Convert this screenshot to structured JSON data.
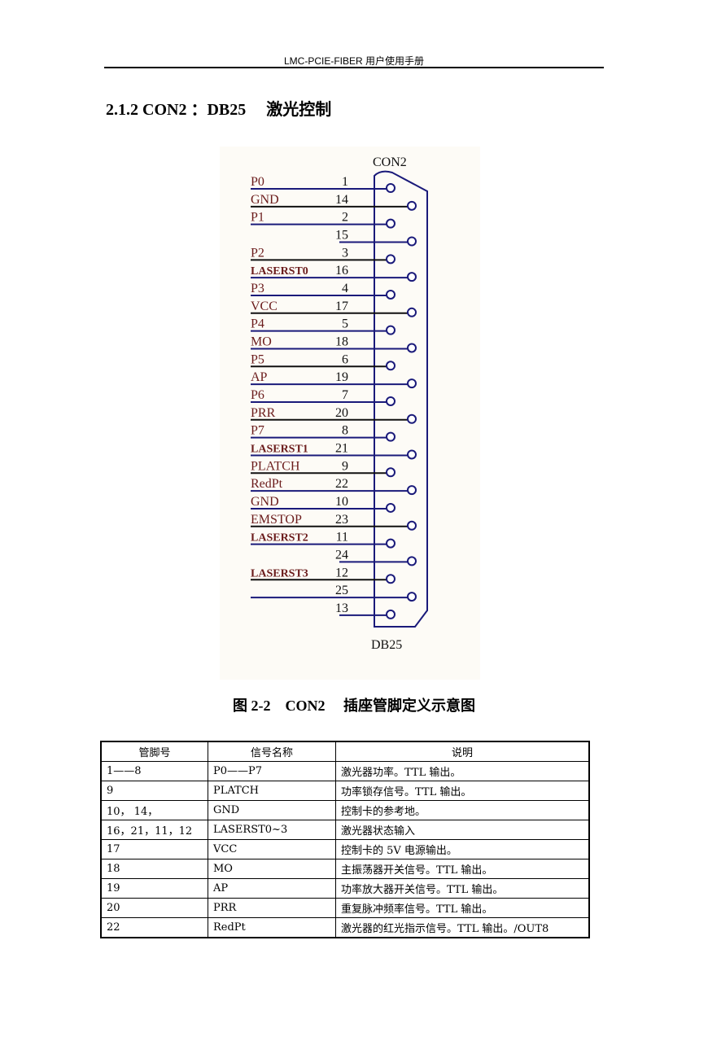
{
  "header": {
    "title": "LMC-PCIE-FIBER 用户使用手册"
  },
  "section": {
    "title": "2.1.2 CON2 ：DB25　 激光控制"
  },
  "diagram": {
    "connector_name": "CON2",
    "connector_type": "DB25",
    "label_color": "#6b1c1c",
    "wire_color": "#1a1a7a",
    "pins": [
      {
        "pin": "1",
        "signal": "P0"
      },
      {
        "pin": "14",
        "signal": "GND"
      },
      {
        "pin": "2",
        "signal": "P1"
      },
      {
        "pin": "15",
        "signal": ""
      },
      {
        "pin": "3",
        "signal": "P2"
      },
      {
        "pin": "16",
        "signal": "LASERST0"
      },
      {
        "pin": "4",
        "signal": "P3"
      },
      {
        "pin": "17",
        "signal": "VCC"
      },
      {
        "pin": "5",
        "signal": "P4"
      },
      {
        "pin": "18",
        "signal": "MO"
      },
      {
        "pin": "6",
        "signal": "P5"
      },
      {
        "pin": "19",
        "signal": "AP"
      },
      {
        "pin": "7",
        "signal": "P6"
      },
      {
        "pin": "20",
        "signal": "PRR"
      },
      {
        "pin": "8",
        "signal": "P7"
      },
      {
        "pin": "21",
        "signal": "LASERST1"
      },
      {
        "pin": "9",
        "signal": "PLATCH"
      },
      {
        "pin": "22",
        "signal": "RedPt"
      },
      {
        "pin": "10",
        "signal": "GND"
      },
      {
        "pin": "23",
        "signal": "EMSTOP"
      },
      {
        "pin": "11",
        "signal": "LASERST2"
      },
      {
        "pin": "24",
        "signal": ""
      },
      {
        "pin": "12",
        "signal": "LASERST3"
      },
      {
        "pin": "25",
        "signal": ""
      },
      {
        "pin": "13",
        "signal": ""
      }
    ]
  },
  "caption": "图 2-2　CON2　 插座管脚定义示意图",
  "table": {
    "headers": [
      "管脚号",
      "信号名称",
      "说明"
    ],
    "rows": [
      [
        "1——8",
        "P0——P7",
        "激光器功率。TTL 输出。"
      ],
      [
        "9",
        "PLATCH",
        "功率锁存信号。TTL 输出。"
      ],
      [
        "10， 14，",
        "GND",
        "控制卡的参考地。"
      ],
      [
        "16，21，11，12",
        "LASERST0~3",
        "激光器状态输入"
      ],
      [
        "17",
        "VCC",
        "控制卡的 5V 电源输出。"
      ],
      [
        "18",
        "MO",
        "主振荡器开关信号。TTL 输出。"
      ],
      [
        "19",
        "AP",
        "功率放大器开关信号。TTL 输出。"
      ],
      [
        "20",
        "PRR",
        "重复脉冲频率信号。TTL 输出。"
      ],
      [
        "22",
        "RedPt",
        "激光器的红光指示信号。TTL 输出。/OUT8"
      ]
    ]
  }
}
